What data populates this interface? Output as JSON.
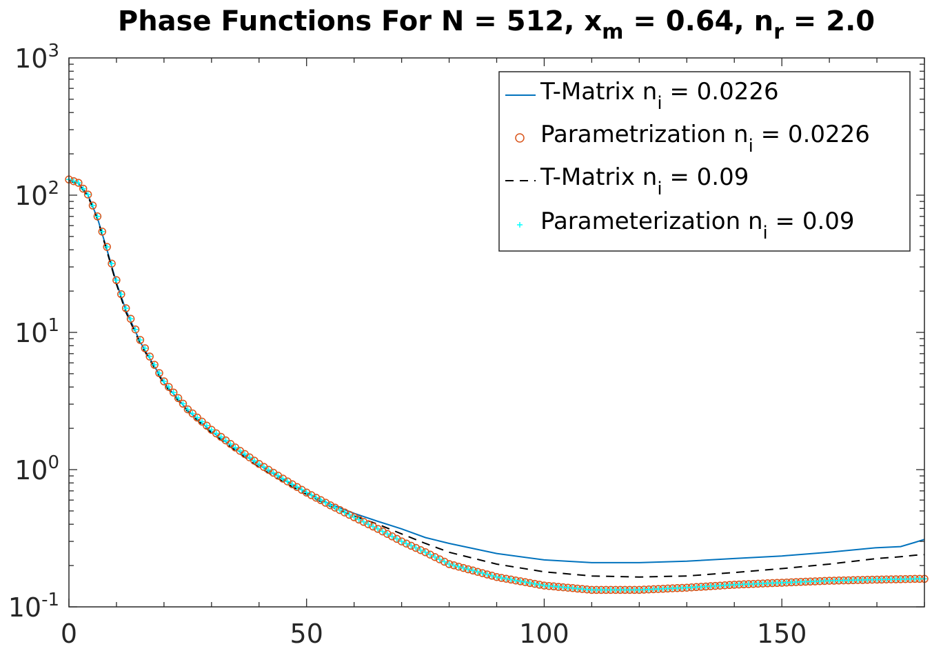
{
  "chart_data": {
    "type": "line",
    "title": {
      "prefix": "Phase Functions For N = 512, x",
      "sub1": "m",
      "mid": " = 0.64, n",
      "sub2": "r",
      "suffix": " = 2.0"
    },
    "xlabel": "",
    "ylabel": "",
    "xlim": [
      0,
      180
    ],
    "ylim": [
      0.1,
      1000
    ],
    "yscale": "log",
    "grid": false,
    "legend_position": "top-right",
    "x_ticks": [
      0,
      50,
      100,
      150
    ],
    "y_ticks": [
      {
        "value": 0.1,
        "base": "10",
        "exp": "-1"
      },
      {
        "value": 1,
        "base": "10",
        "exp": "0"
      },
      {
        "value": 10,
        "base": "10",
        "exp": "1"
      },
      {
        "value": 100,
        "base": "10",
        "exp": "2"
      },
      {
        "value": 1000,
        "base": "10",
        "exp": "3"
      }
    ],
    "x": [
      0,
      2,
      4,
      6,
      8,
      10,
      12,
      15,
      20,
      25,
      30,
      35,
      40,
      45,
      50,
      55,
      60,
      65,
      70,
      75,
      80,
      90,
      100,
      110,
      120,
      130,
      140,
      150,
      160,
      170,
      175,
      178,
      180
    ],
    "series": [
      {
        "name": {
          "prefix": "T-Matrix n",
          "sub": "i",
          "suffix": " = 0.0226"
        },
        "style": "solid",
        "color": "#0072BD",
        "values": [
          130,
          122,
          100,
          68,
          40,
          23,
          14.5,
          8.5,
          4.3,
          2.7,
          1.9,
          1.42,
          1.08,
          0.85,
          0.68,
          0.56,
          0.48,
          0.42,
          0.37,
          0.32,
          0.29,
          0.245,
          0.22,
          0.21,
          0.21,
          0.215,
          0.225,
          0.235,
          0.25,
          0.27,
          0.275,
          0.295,
          0.31
        ]
      },
      {
        "name": {
          "prefix": "Parametrization n",
          "sub": "i",
          "suffix": " = 0.0226"
        },
        "style": "circle",
        "color": "#D95319",
        "values": [
          130,
          123,
          101,
          70,
          42,
          24,
          15,
          8.8,
          4.4,
          2.75,
          1.95,
          1.45,
          1.1,
          0.86,
          0.68,
          0.55,
          0.45,
          0.37,
          0.3,
          0.25,
          0.205,
          0.165,
          0.143,
          0.133,
          0.133,
          0.138,
          0.145,
          0.15,
          0.155,
          0.158,
          0.159,
          0.16,
          0.16
        ]
      },
      {
        "name": {
          "prefix": "T-Matrix n",
          "sub": "i",
          "suffix": " = 0.09"
        },
        "style": "dashed",
        "color": "#000000",
        "values": [
          128,
          120,
          98,
          67,
          39,
          22.5,
          14,
          8.3,
          4.2,
          2.65,
          1.85,
          1.38,
          1.04,
          0.82,
          0.66,
          0.54,
          0.46,
          0.4,
          0.34,
          0.29,
          0.25,
          0.205,
          0.18,
          0.168,
          0.165,
          0.168,
          0.178,
          0.19,
          0.205,
          0.225,
          0.232,
          0.238,
          0.24
        ]
      },
      {
        "name": {
          "prefix": "Parameterization n",
          "sub": "i",
          "suffix": " = 0.09"
        },
        "style": "plus",
        "color": "#00FFFF",
        "values": [
          130,
          123,
          101,
          70,
          42,
          24,
          15,
          8.8,
          4.4,
          2.75,
          1.95,
          1.45,
          1.1,
          0.86,
          0.68,
          0.55,
          0.45,
          0.37,
          0.3,
          0.25,
          0.205,
          0.165,
          0.143,
          0.133,
          0.133,
          0.138,
          0.145,
          0.15,
          0.155,
          0.158,
          0.159,
          0.16,
          0.16
        ]
      }
    ]
  }
}
